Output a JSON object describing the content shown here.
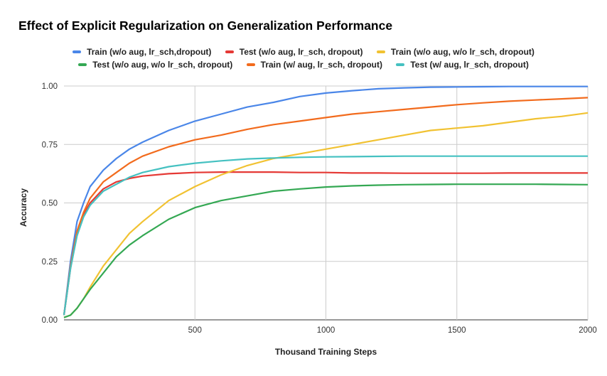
{
  "chart_data": {
    "type": "line",
    "title": "Effect of Explicit Regularization on Generalization Performance",
    "xlabel": "Thousand Training Steps",
    "ylabel": "Accuracy",
    "xlim": [
      0,
      2000
    ],
    "ylim": [
      0,
      1
    ],
    "x_ticks": [
      500,
      1000,
      1500,
      2000
    ],
    "y_ticks": [
      0,
      0.25,
      0.5,
      0.75,
      1
    ],
    "y_tick_labels": [
      "0.00",
      "0.25",
      "0.50",
      "0.75",
      "1.00"
    ],
    "grid": true,
    "legend_position": "top",
    "x": [
      0,
      25,
      50,
      75,
      100,
      150,
      200,
      250,
      300,
      400,
      500,
      600,
      700,
      800,
      900,
      1000,
      1100,
      1200,
      1300,
      1400,
      1500,
      1600,
      1700,
      1800,
      1900,
      2000
    ],
    "series": [
      {
        "name": "Train (w/o aug, lr_sch,dropout)",
        "color": "#4a86e8",
        "values": [
          0.02,
          0.25,
          0.42,
          0.5,
          0.57,
          0.64,
          0.69,
          0.73,
          0.76,
          0.81,
          0.85,
          0.88,
          0.91,
          0.93,
          0.955,
          0.97,
          0.98,
          0.988,
          0.992,
          0.995,
          0.996,
          0.997,
          0.998,
          0.998,
          0.998,
          0.998
        ]
      },
      {
        "name": "Test (w/o aug, lr_sch, dropout)",
        "color": "#e53935",
        "values": [
          0.02,
          0.22,
          0.37,
          0.45,
          0.5,
          0.56,
          0.59,
          0.605,
          0.615,
          0.625,
          0.63,
          0.632,
          0.632,
          0.632,
          0.63,
          0.63,
          0.628,
          0.628,
          0.627,
          0.627,
          0.627,
          0.627,
          0.628,
          0.628,
          0.628,
          0.628
        ]
      },
      {
        "name": "Train (w/o aug, w/o lr_sch, dropout)",
        "color": "#f1c232",
        "values": [
          0.01,
          0.02,
          0.05,
          0.09,
          0.14,
          0.23,
          0.3,
          0.37,
          0.42,
          0.51,
          0.57,
          0.62,
          0.66,
          0.69,
          0.71,
          0.73,
          0.75,
          0.77,
          0.79,
          0.81,
          0.82,
          0.83,
          0.845,
          0.86,
          0.87,
          0.885
        ]
      },
      {
        "name": "Test (w/o aug, w/o lr_sch, dropout)",
        "color": "#34a853",
        "values": [
          0.01,
          0.02,
          0.05,
          0.09,
          0.13,
          0.2,
          0.27,
          0.32,
          0.36,
          0.43,
          0.48,
          0.51,
          0.53,
          0.55,
          0.56,
          0.568,
          0.573,
          0.576,
          0.578,
          0.579,
          0.58,
          0.58,
          0.58,
          0.58,
          0.579,
          0.578
        ]
      },
      {
        "name": "Train (w/ aug, lr_sch, dropout)",
        "color": "#f26b1d",
        "values": [
          0.02,
          0.23,
          0.38,
          0.46,
          0.52,
          0.59,
          0.63,
          0.67,
          0.7,
          0.74,
          0.77,
          0.79,
          0.815,
          0.835,
          0.85,
          0.865,
          0.88,
          0.89,
          0.9,
          0.91,
          0.92,
          0.928,
          0.935,
          0.94,
          0.945,
          0.95
        ]
      },
      {
        "name": "Test (w/ aug, lr_sch, dropout)",
        "color": "#45c1c1",
        "values": [
          0.02,
          0.22,
          0.36,
          0.44,
          0.49,
          0.55,
          0.58,
          0.61,
          0.63,
          0.655,
          0.67,
          0.68,
          0.688,
          0.692,
          0.695,
          0.697,
          0.698,
          0.699,
          0.7,
          0.7,
          0.7,
          0.7,
          0.7,
          0.7,
          0.7,
          0.7
        ]
      }
    ]
  }
}
